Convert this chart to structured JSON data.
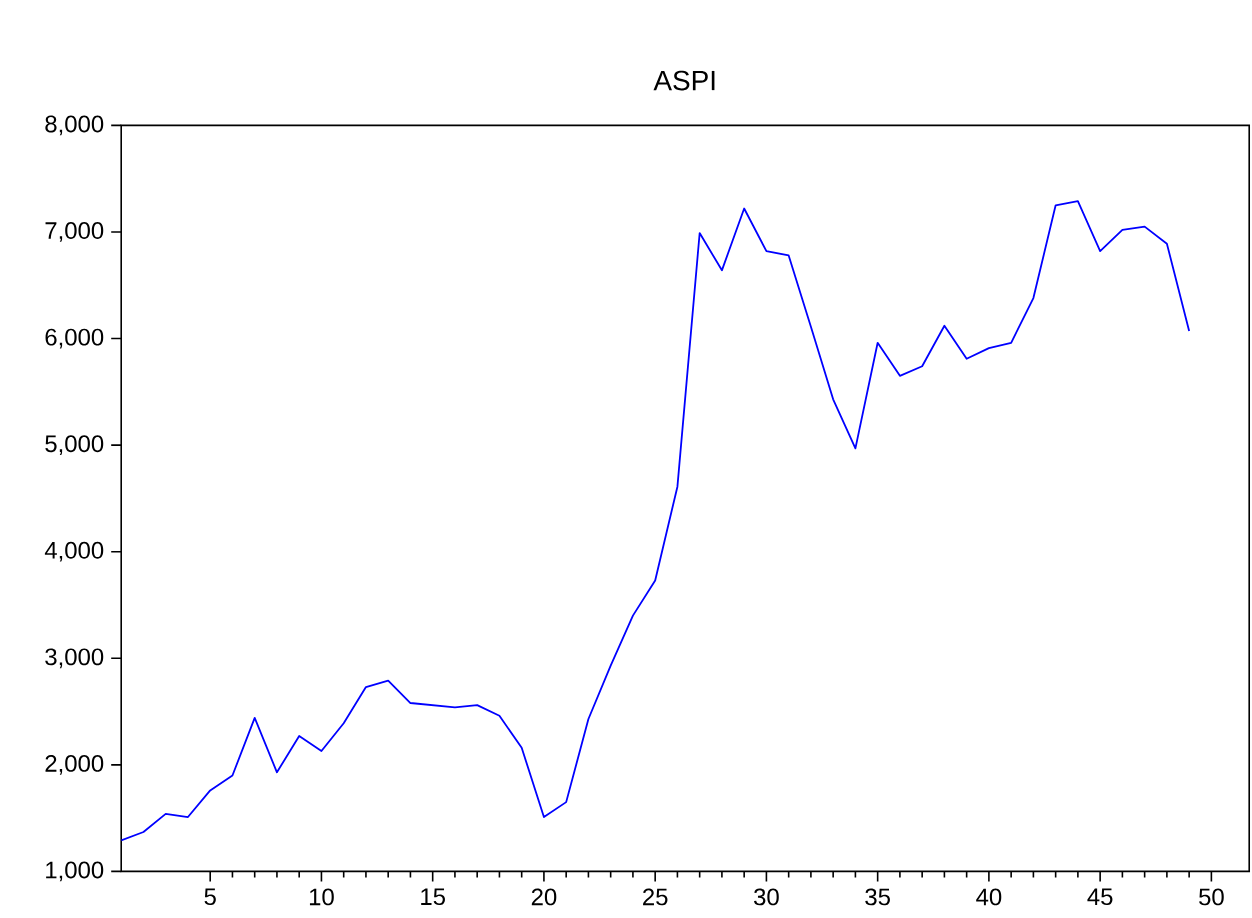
{
  "chart_data": {
    "type": "line",
    "title": "ASPI",
    "x": [
      1,
      2,
      3,
      4,
      5,
      6,
      7,
      8,
      9,
      10,
      11,
      12,
      13,
      14,
      15,
      16,
      17,
      18,
      19,
      20,
      21,
      22,
      23,
      24,
      25,
      26,
      27,
      28,
      29,
      30,
      31,
      32,
      33,
      34,
      35,
      36,
      37,
      38,
      39,
      40,
      41,
      42,
      43,
      44,
      45,
      46,
      47,
      48,
      49
    ],
    "series": [
      {
        "color": "#0000ff",
        "values": [
          1290,
          1370,
          1540,
          1510,
          1760,
          1900,
          2440,
          1930,
          2270,
          2130,
          2390,
          2730,
          2790,
          2580,
          2560,
          2540,
          2560,
          2460,
          2160,
          1510,
          1650,
          2430,
          2930,
          3400,
          3730,
          4610,
          6990,
          6640,
          7220,
          6820,
          6780,
          6110,
          5430,
          4970,
          5960,
          5650,
          5740,
          6120,
          5810,
          5910,
          5960,
          6380,
          7250,
          7290,
          6820,
          7020,
          7050,
          6890,
          6070
        ]
      }
    ],
    "xlim": [
      1,
      51.7
    ],
    "xticks": [
      5,
      10,
      15,
      20,
      25,
      30,
      35,
      40,
      45,
      50
    ],
    "ylim": [
      1000,
      8000
    ],
    "yticks": [
      {
        "value": 1000,
        "label": "1,000"
      },
      {
        "value": 2000,
        "label": "2,000"
      },
      {
        "value": 3000,
        "label": "3,000"
      },
      {
        "value": 4000,
        "label": "4,000"
      },
      {
        "value": 5000,
        "label": "5,000"
      },
      {
        "value": 6000,
        "label": "6,000"
      },
      {
        "value": 7000,
        "label": "7,000"
      },
      {
        "value": 8000,
        "label": "8,000"
      }
    ],
    "marker": "none",
    "line_style": "solid"
  }
}
